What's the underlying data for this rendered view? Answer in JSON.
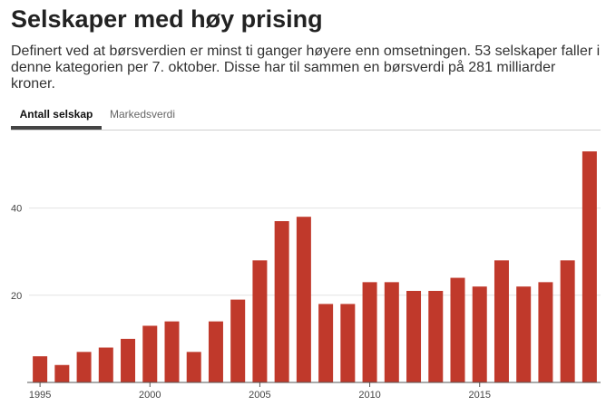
{
  "header": {
    "title": "Selskaper med høy prising",
    "subtitle": "Definert ved at børsverdien er minst ti ganger høyere enn omsetningen. 53 selskaper faller i denne kategorien per 7. oktober. Disse har til sammen en børsverdi på 281 milliarder kroner."
  },
  "tabs": [
    {
      "label": "Antall selskap",
      "active": true
    },
    {
      "label": "Markedsverdi",
      "active": false
    }
  ],
  "colors": {
    "bar": "#c0392b",
    "grid": "#e3e3e3",
    "axis": "#555555"
  },
  "chart_data": {
    "type": "bar",
    "x": [
      1995,
      1996,
      1997,
      1998,
      1999,
      2000,
      2001,
      2002,
      2003,
      2004,
      2005,
      2006,
      2007,
      2008,
      2009,
      2010,
      2011,
      2012,
      2013,
      2014,
      2015,
      2016,
      2017,
      2018,
      2019,
      2020
    ],
    "values": [
      6,
      4,
      7,
      8,
      10,
      13,
      14,
      7,
      14,
      19,
      28,
      37,
      38,
      18,
      18,
      23,
      23,
      21,
      21,
      24,
      22,
      28,
      22,
      23,
      28,
      53
    ],
    "x_tick_labels": [
      "1995",
      "2000",
      "2005",
      "2010",
      "2015"
    ],
    "y_ticks": [
      20,
      40
    ],
    "ylim": [
      0,
      58
    ],
    "grid": true,
    "title": "",
    "xlabel": "",
    "ylabel": ""
  }
}
